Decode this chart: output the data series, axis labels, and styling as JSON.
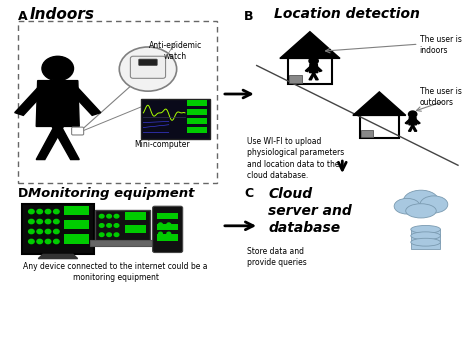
{
  "bg_color": "#ffffff",
  "black": "#000000",
  "gray": "#888888",
  "dark_gray": "#333333",
  "light_gray": "#cccccc",
  "light_blue": "#a8c8e0",
  "blue_gray": "#7a9ab0",
  "green": "#00cc00",
  "monitor_bg": "#1a1a2e",
  "dashed_color": "#666666",
  "section_A_label": "A",
  "section_B_label": "B",
  "section_C_label": "C",
  "section_D_label": "D",
  "section_A_title": "Indoors",
  "section_B_title": "Location detection",
  "section_C_title": "Cloud\nserver and\ndatabase",
  "text_antiepidemic": "Anti-epidemic\nwatch",
  "text_minicomputer": "Mini-computer",
  "text_monitoring": "Monitoring equipment",
  "text_indoors": "The user is\nindoors",
  "text_outdoors": "The user is\noutdoors",
  "text_wifi": "Use WI-FI to upload\nphysiological parameters\nand location data to the\ncloud database.",
  "text_cloud_sub": "Store data and\nprovide queries",
  "text_device": "Any device connected to the internet could be a\nmonitoring equipment"
}
